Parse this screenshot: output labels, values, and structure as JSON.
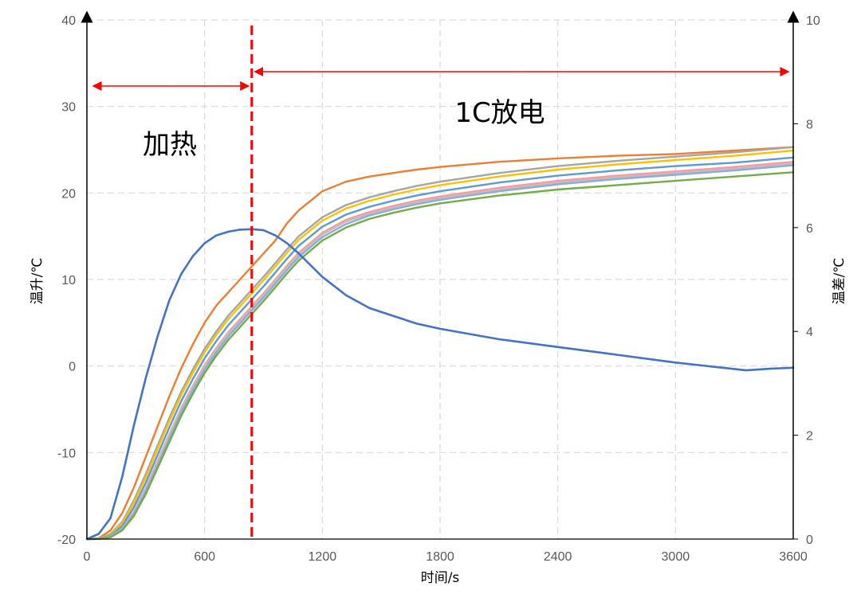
{
  "chart_data": {
    "type": "line",
    "xlabel": "时间/s",
    "ylabel_left": "温升/℃",
    "ylabel_right": "温差/℃",
    "xlim": [
      0,
      3600
    ],
    "ylim_left": [
      -20,
      40
    ],
    "ylim_right": [
      0,
      10
    ],
    "x_ticks": [
      "0",
      "600",
      "1200",
      "1800",
      "2400",
      "3000",
      "3600"
    ],
    "y_left_ticks": [
      "-20",
      "-10",
      "0",
      "10",
      "20",
      "30",
      "40"
    ],
    "y_right_ticks": [
      "0",
      "2",
      "4",
      "6",
      "8",
      "10"
    ],
    "grid": true,
    "divider_x": 840,
    "annotations": {
      "heating": "加热",
      "discharge": "1C放电"
    },
    "colors": {
      "temp_diff": "#4472C4",
      "divider": "#FF0000",
      "arrow": "#FF0000",
      "grid": "#D9D9D9"
    },
    "series_temp_diff": {
      "axis": "right",
      "color": "#4472C4",
      "points": [
        [
          0,
          0
        ],
        [
          60,
          0.1
        ],
        [
          120,
          0.4
        ],
        [
          180,
          1.2
        ],
        [
          240,
          2.2
        ],
        [
          300,
          3.1
        ],
        [
          360,
          3.9
        ],
        [
          420,
          4.6
        ],
        [
          480,
          5.1
        ],
        [
          540,
          5.45
        ],
        [
          600,
          5.7
        ],
        [
          660,
          5.85
        ],
        [
          720,
          5.92
        ],
        [
          780,
          5.96
        ],
        [
          840,
          5.97
        ],
        [
          900,
          5.95
        ],
        [
          960,
          5.85
        ],
        [
          1020,
          5.7
        ],
        [
          1080,
          5.5
        ],
        [
          1200,
          5.05
        ],
        [
          1320,
          4.7
        ],
        [
          1440,
          4.45
        ],
        [
          1560,
          4.3
        ],
        [
          1680,
          4.15
        ],
        [
          1800,
          4.05
        ],
        [
          2100,
          3.85
        ],
        [
          2400,
          3.7
        ],
        [
          2700,
          3.55
        ],
        [
          3000,
          3.4
        ],
        [
          3240,
          3.3
        ],
        [
          3360,
          3.25
        ],
        [
          3480,
          3.28
        ],
        [
          3600,
          3.3
        ]
      ]
    },
    "series_temps": [
      {
        "color": "#ED7D31",
        "points": [
          [
            0,
            -20
          ],
          [
            60,
            -19.9
          ],
          [
            120,
            -19
          ],
          [
            180,
            -17
          ],
          [
            240,
            -14
          ],
          [
            300,
            -10.5
          ],
          [
            360,
            -7
          ],
          [
            420,
            -3.5
          ],
          [
            480,
            -0.3
          ],
          [
            540,
            2.5
          ],
          [
            600,
            5
          ],
          [
            660,
            7
          ],
          [
            720,
            8.5
          ],
          [
            780,
            10
          ],
          [
            840,
            11.5
          ],
          [
            900,
            13
          ],
          [
            960,
            14.5
          ],
          [
            1020,
            16.5
          ],
          [
            1080,
            18
          ],
          [
            1200,
            20.2
          ],
          [
            1320,
            21.3
          ],
          [
            1440,
            21.9
          ],
          [
            1560,
            22.3
          ],
          [
            1680,
            22.7
          ],
          [
            1800,
            23
          ],
          [
            2100,
            23.6
          ],
          [
            2400,
            24
          ],
          [
            2700,
            24.3
          ],
          [
            3000,
            24.5
          ],
          [
            3300,
            24.9
          ],
          [
            3600,
            25.3
          ]
        ]
      },
      {
        "color": "#A5A5A5",
        "points": [
          [
            0,
            -20
          ],
          [
            60,
            -19.95
          ],
          [
            120,
            -19.4
          ],
          [
            180,
            -18
          ],
          [
            240,
            -15.5
          ],
          [
            300,
            -12.5
          ],
          [
            360,
            -9.2
          ],
          [
            420,
            -6
          ],
          [
            480,
            -3
          ],
          [
            540,
            -0.4
          ],
          [
            600,
            2
          ],
          [
            660,
            4
          ],
          [
            720,
            5.8
          ],
          [
            780,
            7.3
          ],
          [
            840,
            8.8
          ],
          [
            900,
            10.3
          ],
          [
            960,
            11.9
          ],
          [
            1020,
            13.5
          ],
          [
            1080,
            15
          ],
          [
            1200,
            17.2
          ],
          [
            1320,
            18.6
          ],
          [
            1440,
            19.5
          ],
          [
            1560,
            20.2
          ],
          [
            1680,
            20.8
          ],
          [
            1800,
            21.3
          ],
          [
            2100,
            22.3
          ],
          [
            2400,
            23.1
          ],
          [
            2700,
            23.7
          ],
          [
            3000,
            24.2
          ],
          [
            3300,
            24.7
          ],
          [
            3600,
            25.3
          ]
        ]
      },
      {
        "color": "#FFC000",
        "points": [
          [
            0,
            -20
          ],
          [
            60,
            -19.95
          ],
          [
            120,
            -19.5
          ],
          [
            180,
            -18.2
          ],
          [
            240,
            -15.8
          ],
          [
            300,
            -12.9
          ],
          [
            360,
            -9.6
          ],
          [
            420,
            -6.4
          ],
          [
            480,
            -3.4
          ],
          [
            540,
            -0.8
          ],
          [
            600,
            1.6
          ],
          [
            660,
            3.6
          ],
          [
            720,
            5.4
          ],
          [
            780,
            6.9
          ],
          [
            840,
            8.4
          ],
          [
            900,
            9.9
          ],
          [
            960,
            11.5
          ],
          [
            1020,
            13.1
          ],
          [
            1080,
            14.6
          ],
          [
            1200,
            16.8
          ],
          [
            1320,
            18.2
          ],
          [
            1440,
            19.1
          ],
          [
            1560,
            19.8
          ],
          [
            1680,
            20.4
          ],
          [
            1800,
            20.9
          ],
          [
            2100,
            21.9
          ],
          [
            2400,
            22.7
          ],
          [
            2700,
            23.3
          ],
          [
            3000,
            23.8
          ],
          [
            3300,
            24.3
          ],
          [
            3600,
            24.9
          ]
        ]
      },
      {
        "color": "#5B9BD5",
        "points": [
          [
            0,
            -20
          ],
          [
            60,
            -19.96
          ],
          [
            120,
            -19.6
          ],
          [
            180,
            -18.5
          ],
          [
            240,
            -16.3
          ],
          [
            300,
            -13.5
          ],
          [
            360,
            -10.3
          ],
          [
            420,
            -7.1
          ],
          [
            480,
            -4.1
          ],
          [
            540,
            -1.5
          ],
          [
            600,
            0.9
          ],
          [
            660,
            2.9
          ],
          [
            720,
            4.7
          ],
          [
            780,
            6.2
          ],
          [
            840,
            7.7
          ],
          [
            900,
            9.2
          ],
          [
            960,
            10.8
          ],
          [
            1020,
            12.4
          ],
          [
            1080,
            13.9
          ],
          [
            1200,
            16.1
          ],
          [
            1320,
            17.5
          ],
          [
            1440,
            18.4
          ],
          [
            1560,
            19.1
          ],
          [
            1680,
            19.7
          ],
          [
            1800,
            20.2
          ],
          [
            2100,
            21.2
          ],
          [
            2400,
            22
          ],
          [
            2700,
            22.6
          ],
          [
            3000,
            23.1
          ],
          [
            3300,
            23.5
          ],
          [
            3600,
            24.1
          ]
        ]
      },
      {
        "color": "#FF9999",
        "points": [
          [
            0,
            -20
          ],
          [
            60,
            -19.97
          ],
          [
            120,
            -19.7
          ],
          [
            180,
            -18.8
          ],
          [
            240,
            -16.8
          ],
          [
            300,
            -14.1
          ],
          [
            360,
            -11
          ],
          [
            420,
            -7.9
          ],
          [
            480,
            -4.9
          ],
          [
            540,
            -2.3
          ],
          [
            600,
            0.1
          ],
          [
            660,
            2.1
          ],
          [
            720,
            3.9
          ],
          [
            780,
            5.4
          ],
          [
            840,
            6.9
          ],
          [
            900,
            8.4
          ],
          [
            960,
            10
          ],
          [
            1020,
            11.6
          ],
          [
            1080,
            13.1
          ],
          [
            1200,
            15.4
          ],
          [
            1320,
            16.9
          ],
          [
            1440,
            17.8
          ],
          [
            1560,
            18.5
          ],
          [
            1680,
            19.1
          ],
          [
            1800,
            19.6
          ],
          [
            2100,
            20.6
          ],
          [
            2400,
            21.4
          ],
          [
            2700,
            22
          ],
          [
            3000,
            22.5
          ],
          [
            3300,
            23
          ],
          [
            3600,
            23.6
          ]
        ]
      },
      {
        "color": "#BFBFBF",
        "points": [
          [
            0,
            -20
          ],
          [
            60,
            -19.97
          ],
          [
            120,
            -19.7
          ],
          [
            180,
            -18.8
          ],
          [
            240,
            -16.9
          ],
          [
            300,
            -14.2
          ],
          [
            360,
            -11.2
          ],
          [
            420,
            -8.1
          ],
          [
            480,
            -5.1
          ],
          [
            540,
            -2.5
          ],
          [
            600,
            -0.1
          ],
          [
            660,
            1.9
          ],
          [
            720,
            3.7
          ],
          [
            780,
            5.2
          ],
          [
            840,
            6.7
          ],
          [
            900,
            8.2
          ],
          [
            960,
            9.8
          ],
          [
            1020,
            11.4
          ],
          [
            1080,
            12.9
          ],
          [
            1200,
            15.2
          ],
          [
            1320,
            16.7
          ],
          [
            1440,
            17.6
          ],
          [
            1560,
            18.3
          ],
          [
            1680,
            18.9
          ],
          [
            1800,
            19.4
          ],
          [
            2100,
            20.4
          ],
          [
            2400,
            21.2
          ],
          [
            2700,
            21.8
          ],
          [
            3000,
            22.3
          ],
          [
            3300,
            22.8
          ],
          [
            3600,
            23.4
          ]
        ]
      },
      {
        "color": "#8FAADC",
        "points": [
          [
            0,
            -20
          ],
          [
            60,
            -19.98
          ],
          [
            120,
            -19.75
          ],
          [
            180,
            -18.9
          ],
          [
            240,
            -17.1
          ],
          [
            300,
            -14.5
          ],
          [
            360,
            -11.5
          ],
          [
            420,
            -8.4
          ],
          [
            480,
            -5.4
          ],
          [
            540,
            -2.8
          ],
          [
            600,
            -0.4
          ],
          [
            660,
            1.6
          ],
          [
            720,
            3.4
          ],
          [
            780,
            4.9
          ],
          [
            840,
            6.4
          ],
          [
            900,
            7.9
          ],
          [
            960,
            9.5
          ],
          [
            1020,
            11.1
          ],
          [
            1080,
            12.6
          ],
          [
            1200,
            14.9
          ],
          [
            1320,
            16.4
          ],
          [
            1440,
            17.4
          ],
          [
            1560,
            18.1
          ],
          [
            1680,
            18.7
          ],
          [
            1800,
            19.2
          ],
          [
            2100,
            20.2
          ],
          [
            2400,
            21
          ],
          [
            2700,
            21.6
          ],
          [
            3000,
            22.1
          ],
          [
            3300,
            22.6
          ],
          [
            3600,
            23.2
          ]
        ]
      },
      {
        "color": "#70AD47",
        "points": [
          [
            0,
            -20
          ],
          [
            60,
            -19.98
          ],
          [
            120,
            -19.8
          ],
          [
            180,
            -19
          ],
          [
            240,
            -17.3
          ],
          [
            300,
            -14.8
          ],
          [
            360,
            -11.8
          ],
          [
            420,
            -8.8
          ],
          [
            480,
            -5.8
          ],
          [
            540,
            -3.2
          ],
          [
            600,
            -0.8
          ],
          [
            660,
            1.2
          ],
          [
            720,
            3
          ],
          [
            780,
            4.5
          ],
          [
            840,
            6
          ],
          [
            900,
            7.5
          ],
          [
            960,
            9.1
          ],
          [
            1020,
            10.7
          ],
          [
            1080,
            12.2
          ],
          [
            1200,
            14.5
          ],
          [
            1320,
            16
          ],
          [
            1440,
            17
          ],
          [
            1560,
            17.7
          ],
          [
            1680,
            18.3
          ],
          [
            1800,
            18.8
          ],
          [
            2100,
            19.7
          ],
          [
            2400,
            20.4
          ],
          [
            2700,
            20.9
          ],
          [
            3000,
            21.4
          ],
          [
            3300,
            21.9
          ],
          [
            3600,
            22.4
          ]
        ]
      }
    ]
  }
}
